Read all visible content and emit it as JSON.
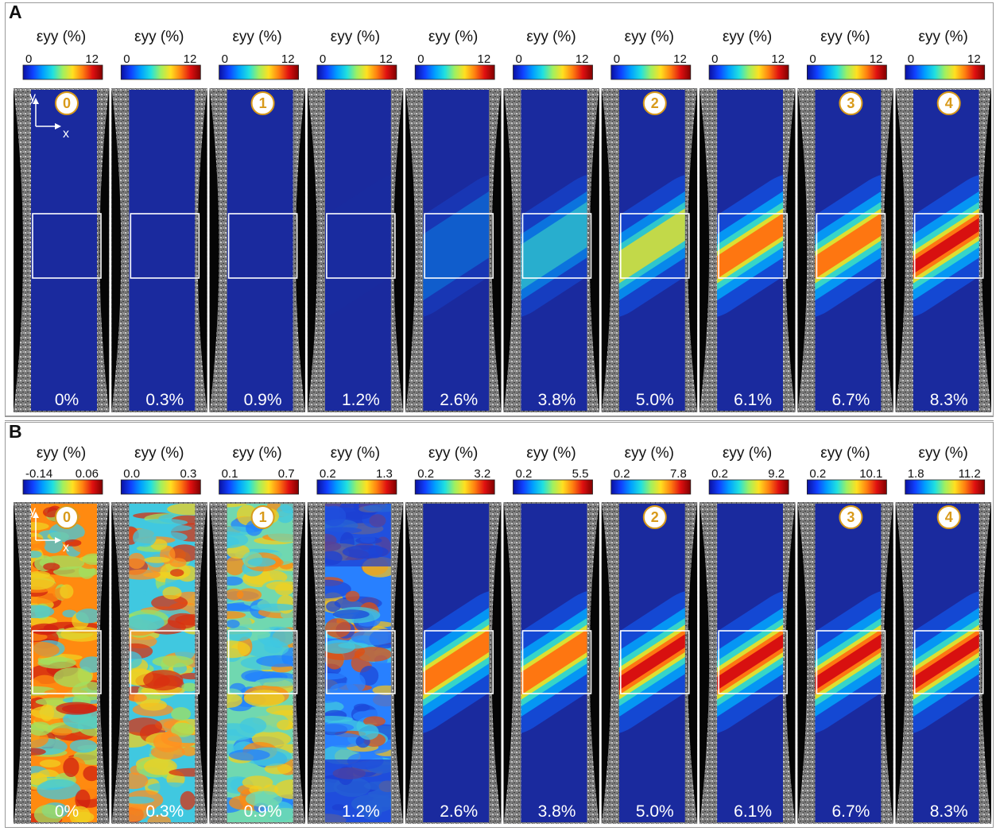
{
  "panels": [
    {
      "label": "A",
      "header": "εyy (%)",
      "colorbars": [
        {
          "min": "0",
          "max": "12"
        },
        {
          "min": "0",
          "max": "12"
        },
        {
          "min": "0",
          "max": "12"
        },
        {
          "min": "0",
          "max": "12"
        },
        {
          "min": "0",
          "max": "12"
        },
        {
          "min": "0",
          "max": "12"
        },
        {
          "min": "0",
          "max": "12"
        },
        {
          "min": "0",
          "max": "12"
        },
        {
          "min": "0",
          "max": "12"
        },
        {
          "min": "0",
          "max": "12"
        }
      ],
      "strains": [
        "0%",
        "0.3%",
        "0.9%",
        "1.2%",
        "2.6%",
        "3.8%",
        "5.0%",
        "6.1%",
        "6.7%",
        "8.3%"
      ],
      "band_intensity": [
        0.0,
        0.0,
        0.0,
        0.03,
        0.3,
        0.45,
        0.6,
        0.75,
        0.85,
        1.0
      ],
      "noise_pattern": false
    },
    {
      "label": "B",
      "header": "εyy (%)",
      "colorbars": [
        {
          "min": "-0.14",
          "max": "0.06"
        },
        {
          "min": "0.0",
          "max": "0.3"
        },
        {
          "min": "0.1",
          "max": "0.7"
        },
        {
          "min": "0.2",
          "max": "1.3"
        },
        {
          "min": "0.2",
          "max": "3.2"
        },
        {
          "min": "0.2",
          "max": "5.5"
        },
        {
          "min": "0.2",
          "max": "7.8"
        },
        {
          "min": "0.2",
          "max": "9.2"
        },
        {
          "min": "0.2",
          "max": "10.1"
        },
        {
          "min": "1.8",
          "max": "11.2"
        }
      ],
      "strains": [
        "0%",
        "0.3%",
        "0.9%",
        "1.2%",
        "2.6%",
        "3.8%",
        "5.0%",
        "6.1%",
        "6.7%",
        "8.3%"
      ],
      "band_intensity": [
        0.0,
        0.1,
        0.25,
        0.5,
        0.85,
        0.9,
        0.95,
        0.95,
        0.95,
        0.95
      ],
      "noise_pattern": true
    }
  ],
  "markers": {
    "columns": [
      0,
      2,
      6,
      8,
      9
    ],
    "labels": [
      "0",
      "1",
      "2",
      "3",
      "4"
    ]
  },
  "axis_labels": {
    "y": "y",
    "x": "x"
  },
  "colormap": [
    "#0a10a0",
    "#1040ff",
    "#00a0ff",
    "#20e0e0",
    "#a0f060",
    "#ffe020",
    "#ff8010",
    "#e01010",
    "#800000"
  ],
  "colors": {
    "specimen_base": "#1a2a9e",
    "speckle": "#8a8a8a",
    "box": "#ffffff",
    "marker": "#d89a1a"
  }
}
